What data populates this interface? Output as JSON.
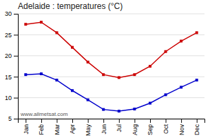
{
  "chart_data": {
    "type": "line",
    "title": "Adelaide : temperatures (°C)",
    "categories": [
      "Jan",
      "Feb",
      "Mar",
      "Apr",
      "May",
      "Jun",
      "Jul",
      "Aug",
      "Sep",
      "Oct",
      "Nov",
      "Dec"
    ],
    "series": [
      {
        "color": "#cc0000",
        "marker": "square",
        "line_style": "solid",
        "values": [
          27.5,
          28.0,
          25.5,
          22.0,
          18.5,
          15.5,
          14.8,
          15.5,
          17.5,
          21.0,
          23.5,
          25.5
        ]
      },
      {
        "color": "#0000cc",
        "marker": "square",
        "line_style": "solid",
        "values": [
          15.5,
          15.7,
          14.2,
          11.7,
          9.5,
          7.2,
          6.8,
          7.3,
          8.7,
          10.7,
          12.5,
          14.2
        ]
      }
    ],
    "ylim": [
      5,
      30
    ],
    "yticks": [
      5,
      10,
      15,
      20,
      25,
      30
    ],
    "grid": true,
    "annotations": [
      "www.allmetsat.com"
    ]
  }
}
